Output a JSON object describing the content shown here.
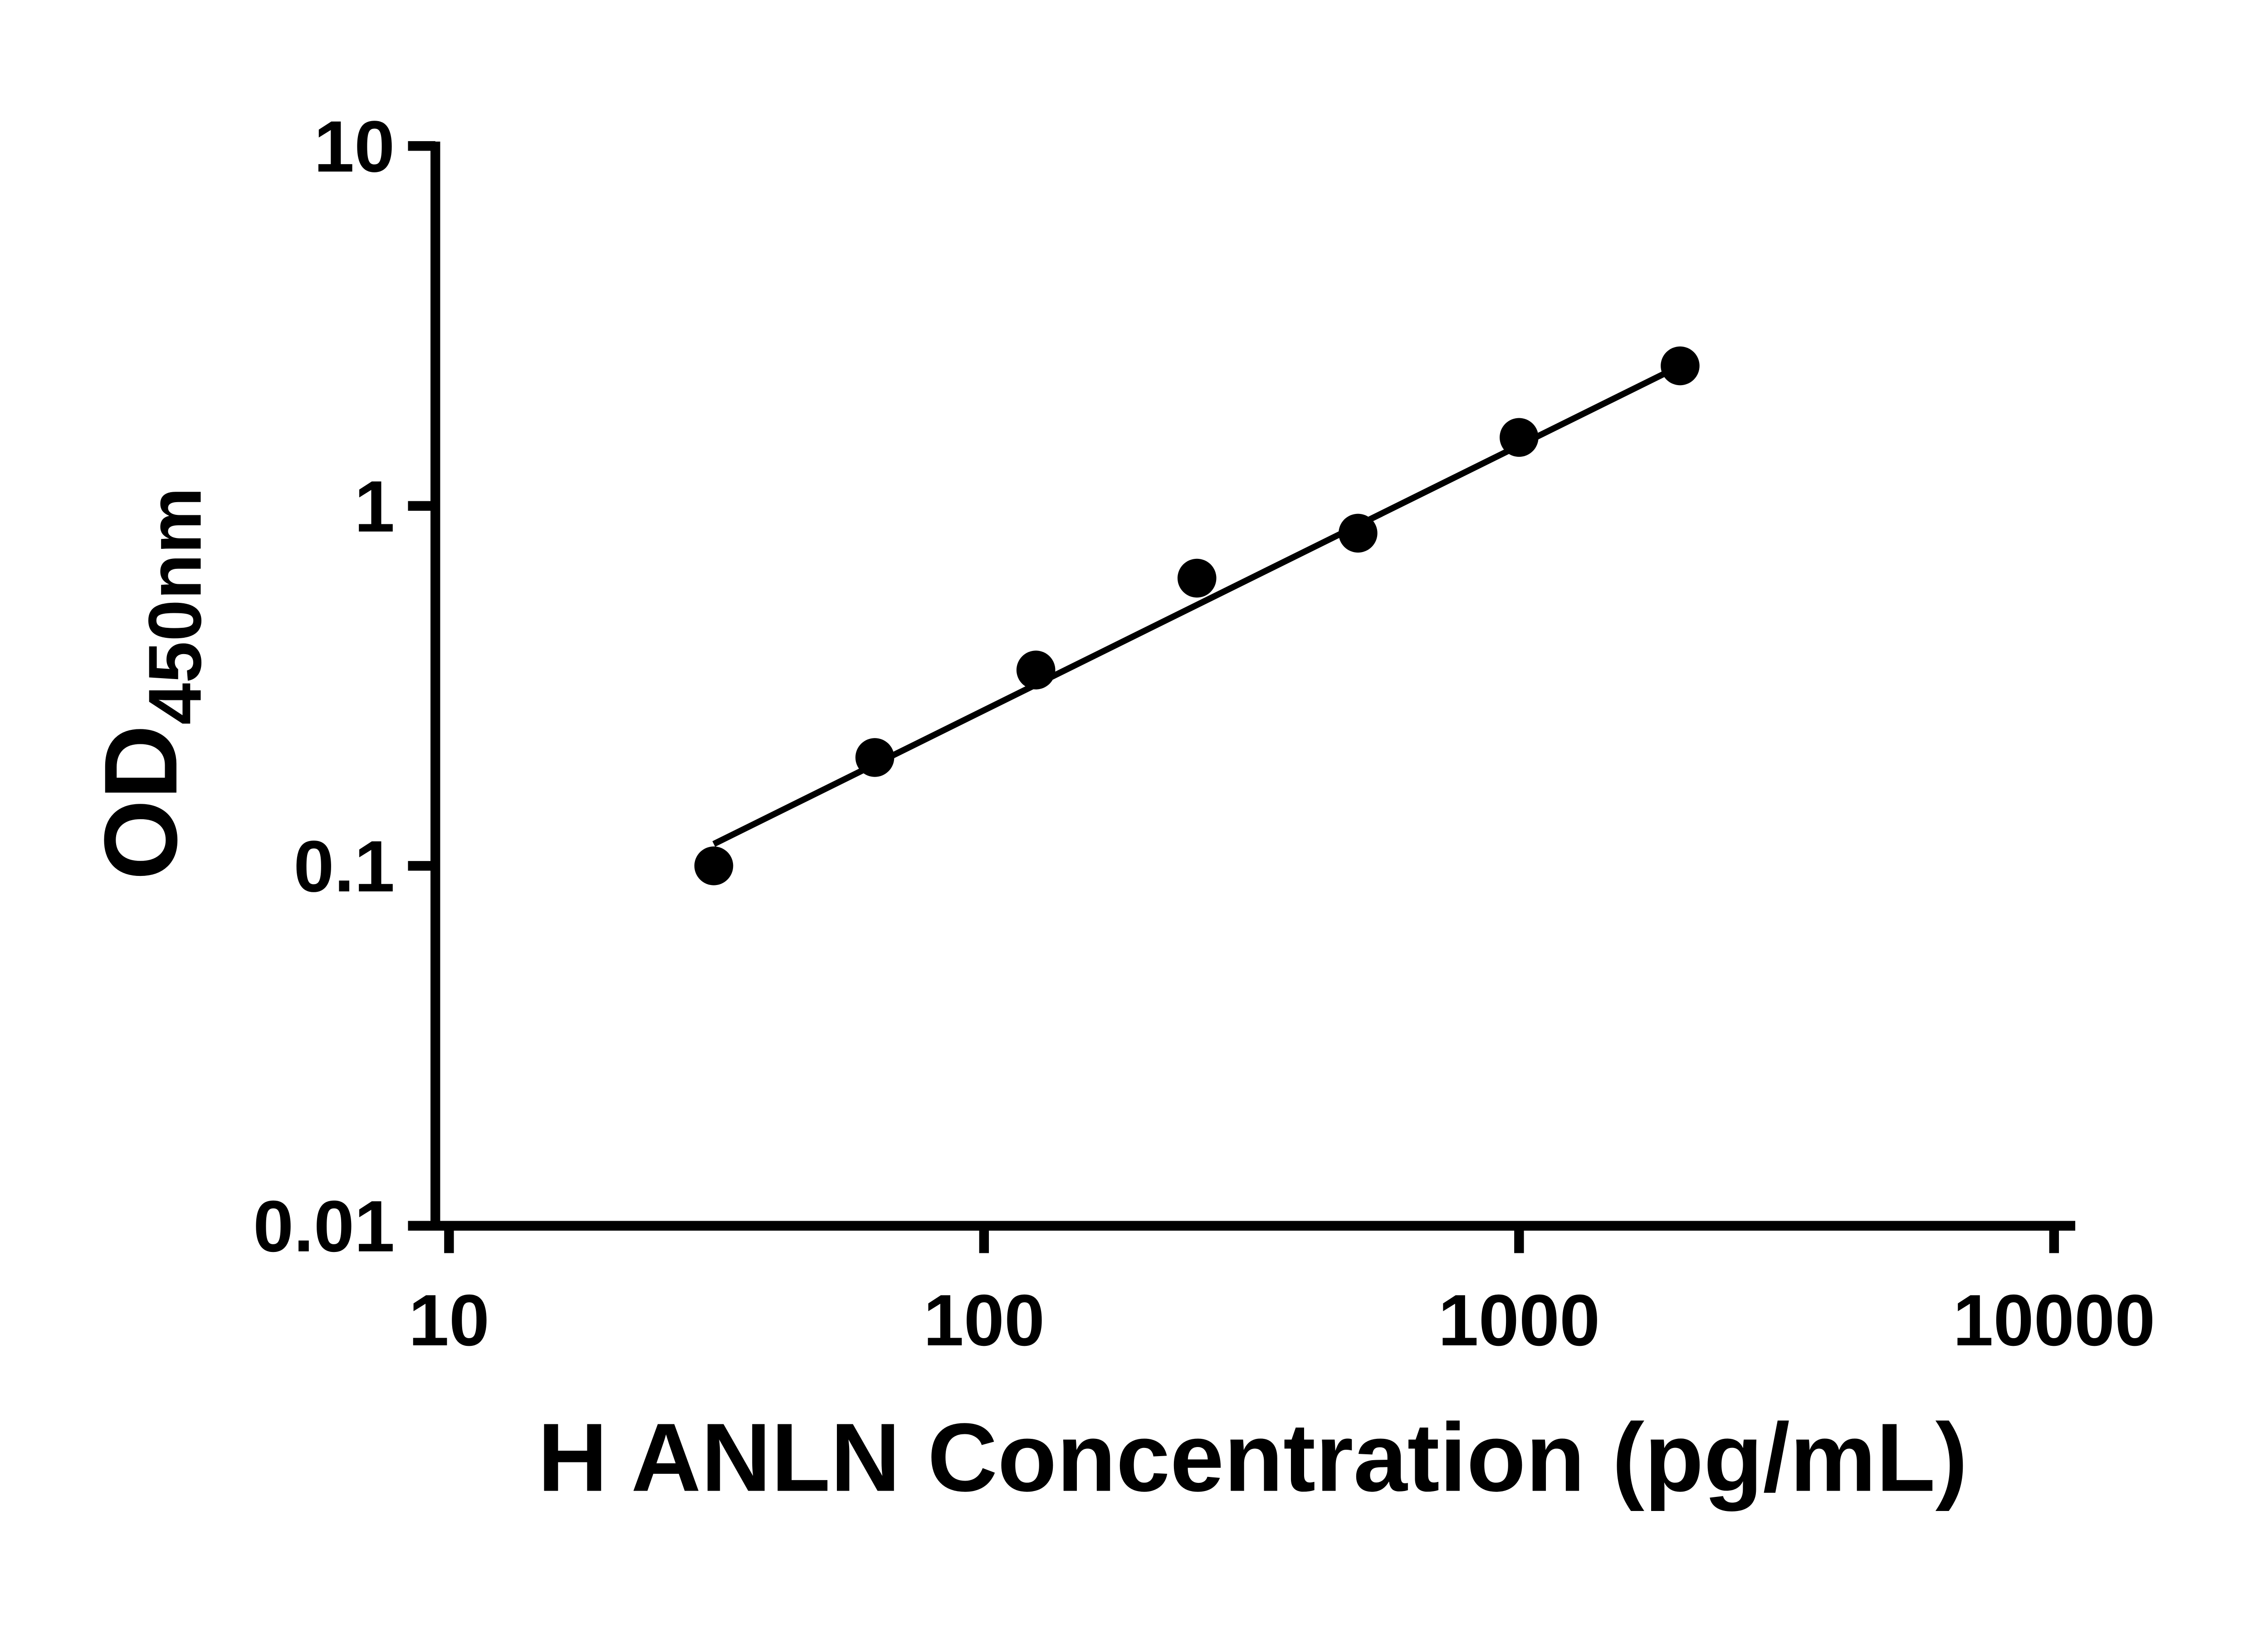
{
  "figure": {
    "background": "#ffffff"
  },
  "chart_data": {
    "type": "scatter",
    "title": "",
    "xlabel": "H ANLN Concentration (pg/mL)",
    "ylabel_main": "OD",
    "ylabel_subscript": "450nm",
    "x_scale": "log10",
    "y_scale": "log10",
    "xlim": [
      10,
      10000
    ],
    "ylim": [
      0.01,
      10
    ],
    "x_ticks": [
      10,
      100,
      1000,
      10000
    ],
    "x_tick_labels": [
      "10",
      "100",
      "1000",
      "10000"
    ],
    "y_ticks": [
      10,
      1,
      0.1,
      0.01
    ],
    "y_tick_labels": [
      "10",
      "1",
      "0.1",
      "0.01"
    ],
    "grid": false,
    "legend": "none",
    "axis_color": "#000000",
    "marker_color": "#000000",
    "line_color": "#000000",
    "series": [
      {
        "name": "standard-curve",
        "marker": "filled-circle",
        "x": [
          31.25,
          62.5,
          125,
          250,
          500,
          1000,
          2000
        ],
        "y": [
          0.1,
          0.2,
          0.35,
          0.63,
          0.84,
          1.55,
          2.45
        ]
      }
    ],
    "fit_line": {
      "x1": 31.25,
      "y1": 0.115,
      "x2": 2000,
      "y2": 2.45
    }
  }
}
